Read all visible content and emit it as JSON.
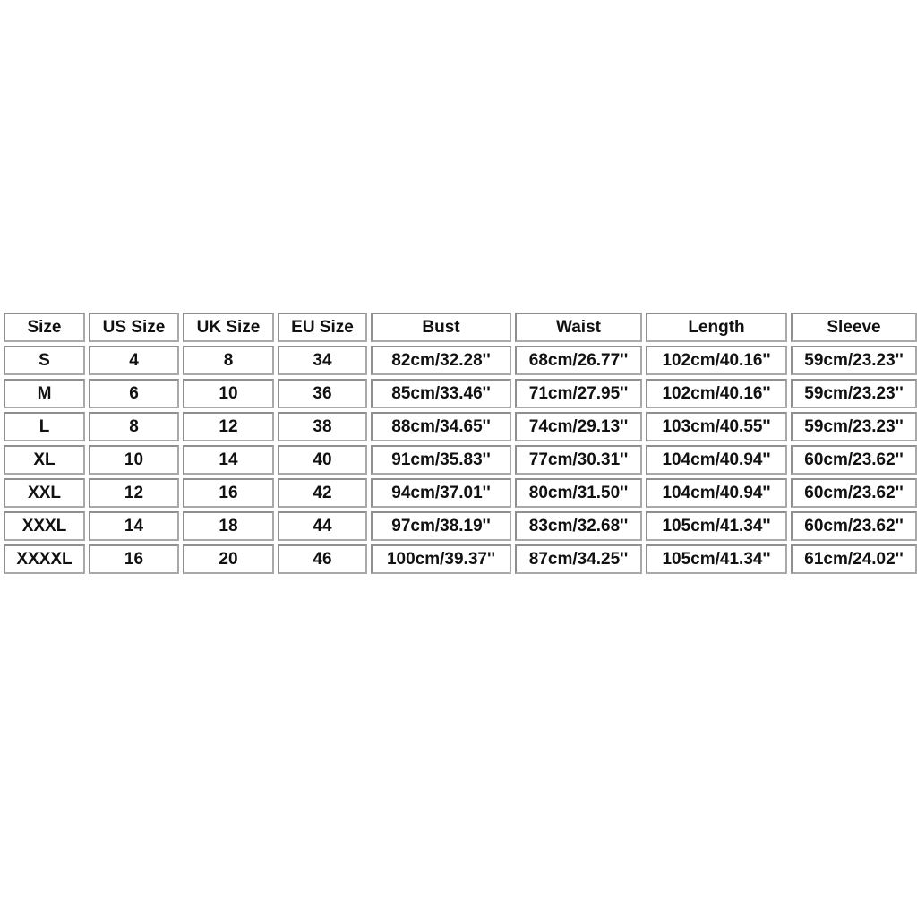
{
  "chart_data": {
    "type": "table",
    "columns": [
      "Size",
      "US Size",
      "UK Size",
      "EU Size",
      "Bust",
      "Waist",
      "Length",
      "Sleeve"
    ],
    "rows": [
      [
        "S",
        "4",
        "8",
        "34",
        "82cm/32.28''",
        "68cm/26.77''",
        "102cm/40.16''",
        "59cm/23.23''"
      ],
      [
        "M",
        "6",
        "10",
        "36",
        "85cm/33.46''",
        "71cm/27.95''",
        "102cm/40.16''",
        "59cm/23.23''"
      ],
      [
        "L",
        "8",
        "12",
        "38",
        "88cm/34.65''",
        "74cm/29.13''",
        "103cm/40.55''",
        "59cm/23.23''"
      ],
      [
        "XL",
        "10",
        "14",
        "40",
        "91cm/35.83''",
        "77cm/30.31''",
        "104cm/40.94''",
        "60cm/23.62''"
      ],
      [
        "XXL",
        "12",
        "16",
        "42",
        "94cm/37.01''",
        "80cm/31.50''",
        "104cm/40.94''",
        "60cm/23.62''"
      ],
      [
        "XXXL",
        "14",
        "18",
        "44",
        "97cm/38.19''",
        "83cm/32.68''",
        "105cm/41.34''",
        "60cm/23.62''"
      ],
      [
        "XXXXL",
        "16",
        "20",
        "46",
        "100cm/39.37''",
        "87cm/34.25''",
        "105cm/41.34''",
        "61cm/24.02''"
      ]
    ]
  },
  "colors": {
    "cell_border": "#a9a9a9",
    "cell_background": "#ffffff",
    "text": "#111111",
    "page_background": "#ffffff"
  }
}
